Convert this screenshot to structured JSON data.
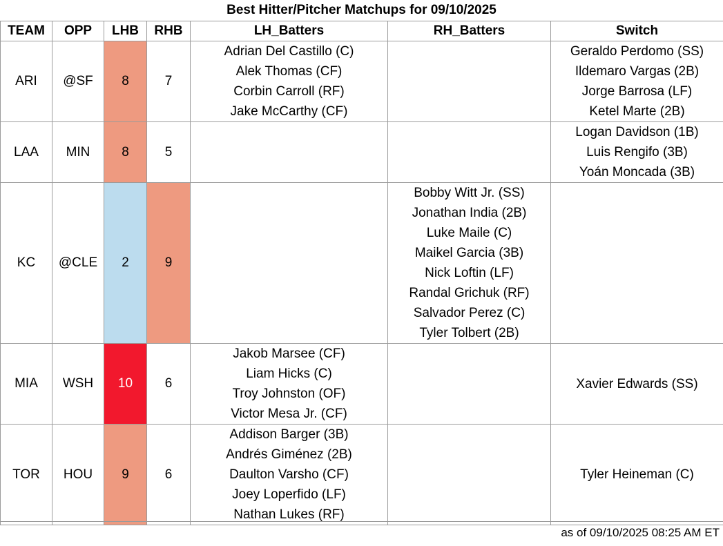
{
  "title": "Best Hitter/Pitcher Matchups for 09/10/2025",
  "headers": [
    "TEAM",
    "OPP",
    "LHB",
    "RHB",
    "LH_Batters",
    "RH_Batters",
    "Switch"
  ],
  "colors": {
    "high": "#ee9a80",
    "very_high": "#f2182d",
    "low": "#bcdcee",
    "very_high_text": "#ffffff"
  },
  "rows": [
    {
      "team": "ARI",
      "opp": "@SF",
      "lhb": "8",
      "rhb": "7",
      "lhb_level": "high",
      "rhb_level": "",
      "lh_batters": [
        "Adrian Del Castillo (C)",
        "Alek Thomas (CF)",
        "Corbin Carroll (RF)",
        "Jake McCarthy (CF)"
      ],
      "rh_batters": [],
      "switch": [
        "Geraldo Perdomo (SS)",
        "Ildemaro Vargas (2B)",
        "Jorge Barrosa (LF)",
        "Ketel Marte (2B)"
      ]
    },
    {
      "team": "LAA",
      "opp": "MIN",
      "lhb": "8",
      "rhb": "5",
      "lhb_level": "high",
      "rhb_level": "",
      "lh_batters": [],
      "rh_batters": [],
      "switch": [
        "Logan Davidson (1B)",
        "Luis Rengifo (3B)",
        "Yoán Moncada (3B)"
      ]
    },
    {
      "team": "KC",
      "opp": "@CLE",
      "lhb": "2",
      "rhb": "9",
      "lhb_level": "low",
      "rhb_level": "high",
      "lh_batters": [],
      "rh_batters": [
        "Bobby Witt Jr. (SS)",
        "Jonathan India (2B)",
        "Luke Maile (C)",
        "Maikel Garcia (3B)",
        "Nick Loftin (LF)",
        "Randal Grichuk (RF)",
        "Salvador Perez (C)",
        "Tyler Tolbert (2B)"
      ],
      "switch": []
    },
    {
      "team": "MIA",
      "opp": "WSH",
      "lhb": "10",
      "rhb": "6",
      "lhb_level": "very_high",
      "rhb_level": "",
      "lh_batters": [
        "Jakob Marsee (CF)",
        "Liam Hicks (C)",
        "Troy Johnston (OF)",
        "Victor Mesa Jr. (CF)"
      ],
      "rh_batters": [],
      "switch": [
        "Xavier Edwards (SS)"
      ]
    },
    {
      "team": "TOR",
      "opp": "HOU",
      "lhb": "9",
      "rhb": "6",
      "lhb_level": "high",
      "rhb_level": "",
      "lh_batters": [
        "Addison Barger (3B)",
        "Andrés Giménez (2B)",
        "Daulton Varsho (CF)",
        "Joey Loperfido (LF)",
        "Nathan Lukes (RF)"
      ],
      "rh_batters": [],
      "switch": [
        "Tyler Heineman (C)"
      ]
    }
  ],
  "footer": "as of 09/10/2025 08:25 AM ET"
}
